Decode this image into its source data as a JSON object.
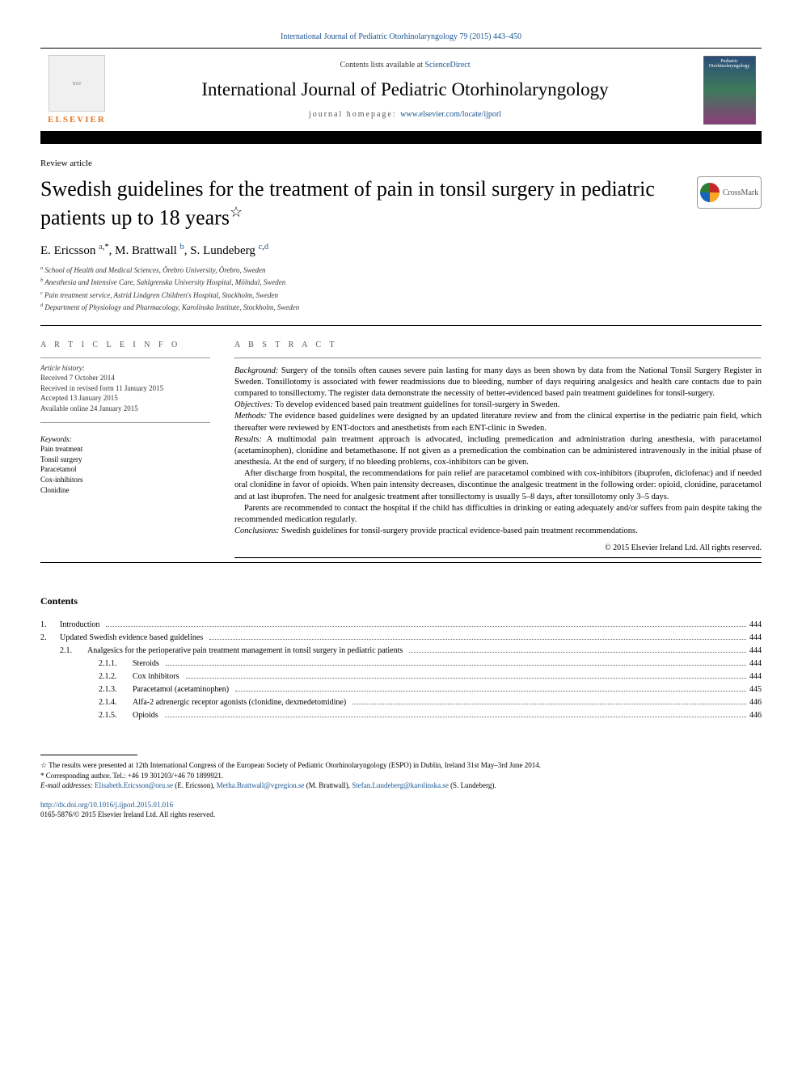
{
  "citation": {
    "text": "International Journal of Pediatric Otorhinolaryngology 79 (2015) 443–450",
    "color": "#1a5490"
  },
  "header": {
    "contents_prefix": "Contents lists available at ",
    "contents_link": "ScienceDirect",
    "journal_name": "International Journal of Pediatric Otorhinolaryngology",
    "homepage_prefix": "journal homepage: ",
    "homepage_link": "www.elsevier.com/locate/ijporl",
    "publisher": "ELSEVIER",
    "cover_text": "Pediatric Otorhinolaryngology"
  },
  "article": {
    "type": "Review article",
    "title": "Swedish guidelines for the treatment of pain in tonsil surgery in pediatric patients up to 18 years",
    "title_footnote_marker": "☆",
    "crossmark_label": "CrossMark",
    "authors_html": "E. Ericsson <sup><a>a</a>,</sup>*, M. Brattwall <sup><a>b</a></sup>, S. Lundeberg <sup><a>c</a>,<a>d</a></sup>",
    "authors": [
      {
        "name": "E. Ericsson",
        "markers": "a,*"
      },
      {
        "name": "M. Brattwall",
        "markers": "b"
      },
      {
        "name": "S. Lundeberg",
        "markers": "c,d"
      }
    ],
    "affiliations": [
      {
        "marker": "a",
        "text": "School of Health and Medical Sciences, Örebro University, Örebro, Sweden"
      },
      {
        "marker": "b",
        "text": "Anesthesia and Intensive Care, Sahlgrenska University Hospital, Mölndal, Sweden"
      },
      {
        "marker": "c",
        "text": "Pain treatment service, Astrid Lindgren Children's Hospital, Stockholm, Sweden"
      },
      {
        "marker": "d",
        "text": "Department of Physiology and Pharmacology, Karolinska Institute, Stockholm, Sweden"
      }
    ]
  },
  "article_info": {
    "header": "A R T I C L E  I N F O",
    "history_label": "Article history:",
    "history": [
      "Received 7 October 2014",
      "Received in revised form 11 January 2015",
      "Accepted 13 January 2015",
      "Available online 24 January 2015"
    ],
    "keywords_label": "Keywords:",
    "keywords": [
      "Pain treatment",
      "Tonsil surgery",
      "Paracetamol",
      "Cox-inhibitors",
      "Clonidine"
    ]
  },
  "abstract": {
    "header": "A B S T R A C T",
    "sections": [
      {
        "label": "Background:",
        "text": " Surgery of the tonsils often causes severe pain lasting for many days as been shown by data from the National Tonsil Surgery Register in Sweden. Tonsillotomy is associated with fewer readmissions due to bleeding, number of days requiring analgesics and health care contacts due to pain compared to tonsillectomy. The register data demonstrate the necessity of better-evidenced based pain treatment guidelines for tonsil-surgery.",
        "indent": false
      },
      {
        "label": "Objectives:",
        "text": " To develop evidenced based pain treatment guidelines for tonsil-surgery in Sweden.",
        "indent": false
      },
      {
        "label": "Methods:",
        "text": " The evidence based guidelines were designed by an updated literature review and from the clinical expertise in the pediatric pain field, which thereafter were reviewed by ENT-doctors and anesthetists from each ENT-clinic in Sweden.",
        "indent": false
      },
      {
        "label": "Results:",
        "text": " A multimodal pain treatment approach is advocated, including premedication and administration during anesthesia, with paracetamol (acetaminophen), clonidine and betamethasone. If not given as a premedication the combination can be administered intravenously in the initial phase of anesthesia. At the end of surgery, if no bleeding problems, cox-inhibitors can be given.",
        "indent": false
      },
      {
        "label": "",
        "text": "After discharge from hospital, the recommendations for pain relief are paracetamol combined with cox-inhibitors (ibuprofen, diclofenac) and if needed oral clonidine in favor of opioids. When pain intensity decreases, discontinue the analgesic treatment in the following order: opioid, clonidine, paracetamol and at last ibuprofen. The need for analgesic treatment after tonsillectomy is usually 5–8 days, after tonsillotomy only 3–5 days.",
        "indent": true
      },
      {
        "label": "",
        "text": "Parents are recommended to contact the hospital if the child has difficulties in drinking or eating adequately and/or suffers from pain despite taking the recommended medication regularly.",
        "indent": true
      },
      {
        "label": "Conclusions:",
        "text": " Swedish guidelines for tonsil-surgery provide practical evidence-based pain treatment recommendations.",
        "indent": false
      }
    ],
    "copyright": "© 2015 Elsevier Ireland Ltd. All rights reserved."
  },
  "contents": {
    "title": "Contents",
    "items": [
      {
        "level": 0,
        "num": "1.",
        "label": "Introduction",
        "page": "444"
      },
      {
        "level": 0,
        "num": "2.",
        "label": "Updated Swedish evidence based guidelines",
        "page": "444"
      },
      {
        "level": 1,
        "num": "2.1.",
        "label": "Analgesics for the perioperative pain treatment management in tonsil surgery in pediatric patients",
        "page": "444"
      },
      {
        "level": 2,
        "num": "2.1.1.",
        "label": "Steroids",
        "page": "444"
      },
      {
        "level": 2,
        "num": "2.1.2.",
        "label": "Cox inhibitors",
        "page": "444"
      },
      {
        "level": 2,
        "num": "2.1.3.",
        "label": "Paracetamol (acetaminophen)",
        "page": "445"
      },
      {
        "level": 2,
        "num": "2.1.4.",
        "label": "Alfa-2 adrenergic receptor agonists (clonidine, dexmedetomidine)",
        "page": "446"
      },
      {
        "level": 2,
        "num": "2.1.5.",
        "label": "Opioids",
        "page": "446"
      }
    ]
  },
  "footnotes": {
    "star": "☆ The results were presented at 12th International Congress of the European Society of Pediatric Otorhinolaryngology (ESPO) in Dublin, Ireland 31st May–3rd June 2014.",
    "corresponding": "* Corresponding author. Tel.: +46 19 301203/+46 70 1899921.",
    "email_label": "E-mail addresses: ",
    "emails": [
      {
        "addr": "Elisabeth.Ericsson@oru.se",
        "who": "(E. Ericsson)"
      },
      {
        "addr": "Metha.Brattwall@vgregion.se",
        "who": "(M. Brattwall)"
      },
      {
        "addr": "Stefan.Lundeberg@karolinska.se",
        "who": "(S. Lundeberg)"
      }
    ]
  },
  "doi": {
    "link": "http://dx.doi.org/10.1016/j.ijporl.2015.01.016",
    "issn_line": "0165-5876/© 2015 Elsevier Ireland Ltd. All rights reserved."
  },
  "colors": {
    "link": "#1a5490",
    "elsevier_orange": "#e87722",
    "text": "#000000",
    "muted": "#555555"
  },
  "typography": {
    "title_fontsize": 26,
    "journal_fontsize": 23,
    "authors_fontsize": 15,
    "body_fontsize": 10.5,
    "small_fontsize": 9
  }
}
